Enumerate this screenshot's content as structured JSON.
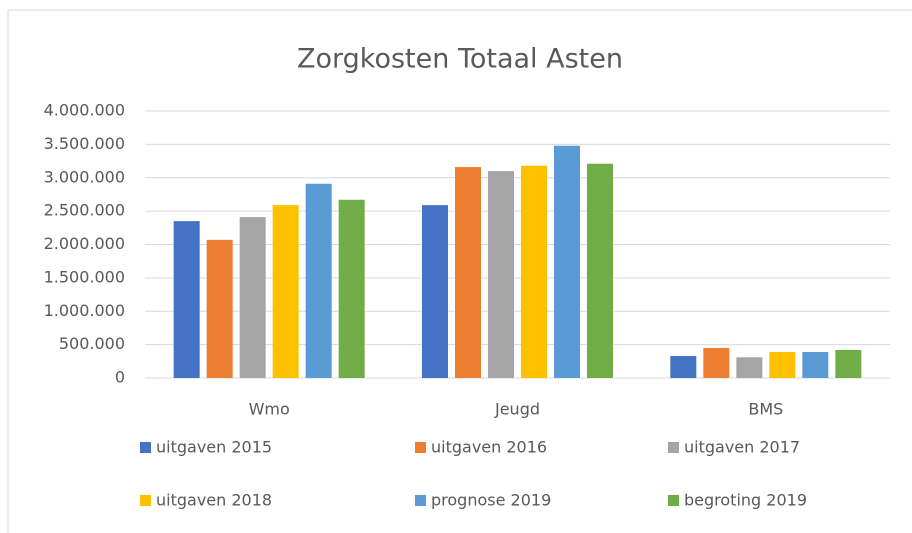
{
  "chart_data": {
    "type": "bar",
    "title": "Zorgkosten Totaal Asten",
    "categories": [
      "Wmo",
      "Jeugd",
      "BMS"
    ],
    "series": [
      {
        "name": "uitgaven 2015",
        "color": "#4472c4",
        "values": [
          2350000,
          2590000,
          330000
        ]
      },
      {
        "name": "uitgaven 2016",
        "color": "#ed7d31",
        "values": [
          2070000,
          3160000,
          450000
        ]
      },
      {
        "name": "uitgaven 2017",
        "color": "#a5a5a5",
        "values": [
          2410000,
          3100000,
          310000
        ]
      },
      {
        "name": "uitgaven 2018",
        "color": "#ffc000",
        "values": [
          2590000,
          3180000,
          390000
        ]
      },
      {
        "name": "prognose 2019",
        "color": "#5b9bd5",
        "values": [
          2910000,
          3480000,
          390000
        ]
      },
      {
        "name": "begroting 2019",
        "color": "#70ad47",
        "values": [
          2670000,
          3210000,
          420000
        ]
      }
    ],
    "ylim": [
      0,
      4000000
    ],
    "yticks": [
      0,
      {
        "value": 500000,
        "label": "500.000"
      },
      {
        "value": 1000000,
        "label": "1.000.000"
      },
      {
        "value": 1500000,
        "label": "1.500.000"
      },
      {
        "value": 2000000,
        "label": "2.000.000"
      },
      {
        "value": 2500000,
        "label": "2.500.000"
      },
      {
        "value": 3000000,
        "label": "3.000.000"
      },
      {
        "value": 3500000,
        "label": "3.500.000"
      },
      {
        "value": 4000000,
        "label": "4.000.000"
      }
    ],
    "grid": true,
    "legend": "bottom"
  }
}
